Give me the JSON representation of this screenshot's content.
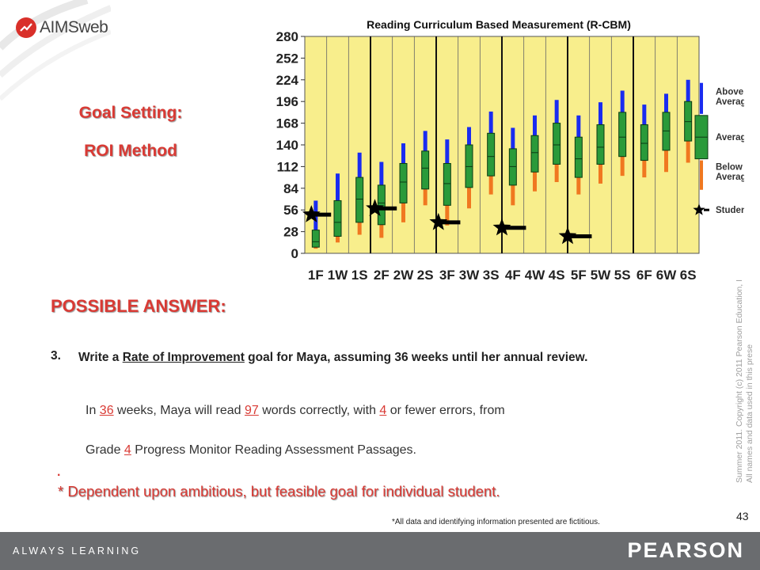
{
  "logo": {
    "text": "AIMSweb"
  },
  "goal_title": "Goal Setting:",
  "goal_subtitle": "ROI Method",
  "possible_answer": "POSSIBLE ANSWER:",
  "question": {
    "number": "3.",
    "line_start": "Write a ",
    "underlined": "Rate of Improvement",
    "line_end": " goal for Maya, assuming 36 weeks until her annual review."
  },
  "answer": {
    "p1": "In ",
    "weeks": "36",
    "p2": " weeks, Maya will read ",
    "words": "97",
    "p3": " words correctly, with ",
    "errors": "4",
    "p4": " or fewer errors, from",
    "p5": "Grade ",
    "grade": "4",
    "p6": " Progress Monitor Reading Assessment Passages."
  },
  "dot": ".",
  "dependent_note": "* Dependent upon ambitious, but feasible goal for individual student.",
  "fictitious_note": "*All data and identifying information presented are fictitious.",
  "page_number": "43",
  "copyright": [
    "Summer 2011.  Copyright (c) 2011 Pearson Education, I",
    "All names and data used in this prese"
  ],
  "footer": {
    "left": "ALWAYS LEARNING",
    "right": "PEARSON"
  },
  "colors": {
    "accent_red": "#d93a34",
    "chart_bg": "#f8ee8c",
    "box_green": "#2a9a3a",
    "whisker_blue": "#1a2cf0",
    "whisker_orange": "#f07820",
    "footer_gray": "#6a6c6f"
  },
  "chart_data": {
    "type": "box",
    "title": "Reading Curriculum Based Measurement (R-CBM)",
    "ylim": [
      0,
      280
    ],
    "yticks": [
      0,
      28,
      56,
      84,
      112,
      140,
      168,
      196,
      224,
      252,
      280
    ],
    "ytick_labels": [
      "0",
      "28",
      "56",
      "84",
      "112",
      "140",
      "168",
      "196",
      "224",
      "252",
      "280"
    ],
    "categories": [
      "1F",
      "1W",
      "1S",
      "2F",
      "2W",
      "2S",
      "3F",
      "3W",
      "3S",
      "4F",
      "4W",
      "4S",
      "5F",
      "5W",
      "5S",
      "6F",
      "6W",
      "6S"
    ],
    "tick_labels": [
      "1F",
      "1W",
      "1S",
      "2F",
      "2W",
      "2S",
      "3F",
      "3W",
      "3S",
      "4F",
      "4W",
      "4S",
      "5F",
      "5W",
      "5S",
      "6F",
      "6W",
      "6S"
    ],
    "boxes": [
      {
        "low": 6,
        "q1": 8,
        "median": 15,
        "q3": 30,
        "high": 68
      },
      {
        "low": 14,
        "q1": 22,
        "median": 40,
        "q3": 68,
        "high": 103
      },
      {
        "low": 24,
        "q1": 40,
        "median": 70,
        "q3": 98,
        "high": 130
      },
      {
        "low": 20,
        "q1": 37,
        "median": 65,
        "q3": 88,
        "high": 118
      },
      {
        "low": 40,
        "q1": 65,
        "median": 92,
        "q3": 116,
        "high": 142
      },
      {
        "low": 62,
        "q1": 83,
        "median": 110,
        "q3": 132,
        "high": 158
      },
      {
        "low": 36,
        "q1": 62,
        "median": 90,
        "q3": 116,
        "high": 147
      },
      {
        "low": 58,
        "q1": 85,
        "median": 112,
        "q3": 140,
        "high": 163
      },
      {
        "low": 76,
        "q1": 100,
        "median": 125,
        "q3": 155,
        "high": 183
      },
      {
        "low": 62,
        "q1": 88,
        "median": 112,
        "q3": 135,
        "high": 162
      },
      {
        "low": 80,
        "q1": 105,
        "median": 130,
        "q3": 152,
        "high": 178
      },
      {
        "low": 92,
        "q1": 115,
        "median": 140,
        "q3": 168,
        "high": 198
      },
      {
        "low": 76,
        "q1": 98,
        "median": 122,
        "q3": 150,
        "high": 178
      },
      {
        "low": 90,
        "q1": 115,
        "median": 137,
        "q3": 166,
        "high": 195
      },
      {
        "low": 100,
        "q1": 125,
        "median": 150,
        "q3": 182,
        "high": 210
      },
      {
        "low": 98,
        "q1": 120,
        "median": 142,
        "q3": 166,
        "high": 192
      },
      {
        "low": 105,
        "q1": 133,
        "median": 158,
        "q3": 182,
        "high": 206
      },
      {
        "low": 117,
        "q1": 145,
        "median": 170,
        "q3": 196,
        "high": 224
      }
    ],
    "student": [
      {
        "x": 0.3,
        "y": 50,
        "x_end": 1.2
      },
      {
        "x": 3.2,
        "y": 58,
        "x_end": 4.2
      },
      {
        "x": 6.1,
        "y": 40,
        "x_end": 7.1
      },
      {
        "x": 9.0,
        "y": 33,
        "x_end": 10.1
      },
      {
        "x": 12.0,
        "y": 22,
        "x_end": 13.1
      }
    ],
    "legend": [
      "Above Average",
      "Average",
      "Below Average",
      "Student"
    ],
    "legend_position": "right"
  }
}
